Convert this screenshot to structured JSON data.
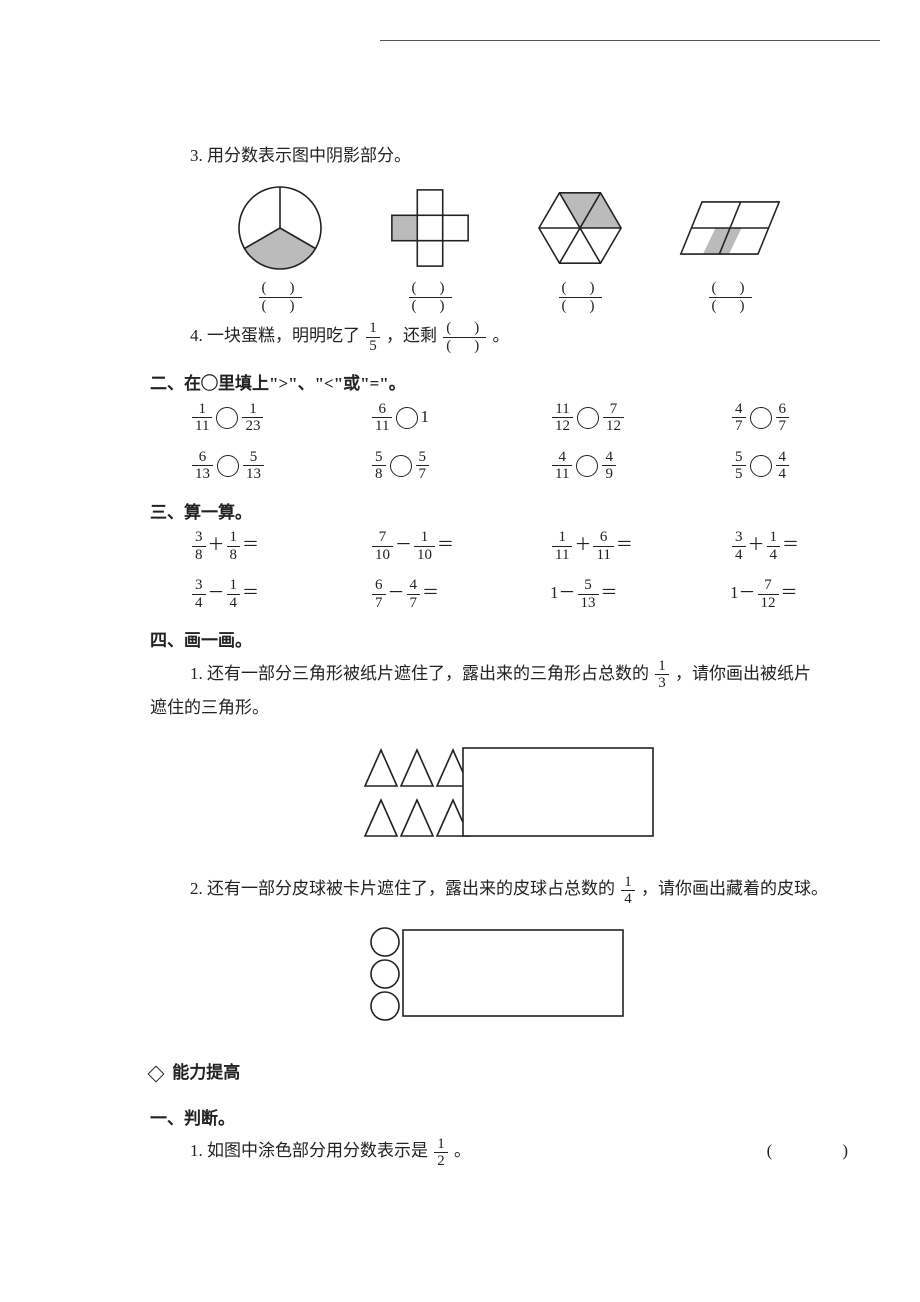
{
  "q3": {
    "prompt": "3. 用分数表示图中阴影部分。",
    "paren_num": "(　)",
    "paren_den": "(　)"
  },
  "q4": {
    "text_a": "4. 一块蛋糕，明明吃了",
    "frac": {
      "n": "1",
      "d": "5"
    },
    "text_b": "，还剩",
    "text_c": "。"
  },
  "s2": {
    "title": "二、在◯里填上\">\"、\"<\"或\"=\"。",
    "items": [
      {
        "l": {
          "n": "1",
          "d": "11"
        },
        "r": {
          "n": "1",
          "d": "23"
        }
      },
      {
        "l": {
          "n": "6",
          "d": "11"
        },
        "rtext": "1"
      },
      {
        "l": {
          "n": "11",
          "d": "12"
        },
        "r": {
          "n": "7",
          "d": "12"
        }
      },
      {
        "l": {
          "n": "4",
          "d": "7"
        },
        "r": {
          "n": "6",
          "d": "7"
        }
      },
      {
        "l": {
          "n": "6",
          "d": "13"
        },
        "r": {
          "n": "5",
          "d": "13"
        }
      },
      {
        "l": {
          "n": "5",
          "d": "8"
        },
        "r": {
          "n": "5",
          "d": "7"
        }
      },
      {
        "l": {
          "n": "4",
          "d": "11"
        },
        "r": {
          "n": "4",
          "d": "9"
        }
      },
      {
        "l": {
          "n": "5",
          "d": "5"
        },
        "r": {
          "n": "4",
          "d": "4"
        }
      }
    ]
  },
  "s3": {
    "title": "三、算一算。",
    "items": [
      {
        "a": {
          "n": "3",
          "d": "8"
        },
        "op": "＋",
        "b": {
          "n": "1",
          "d": "8"
        }
      },
      {
        "a": {
          "n": "7",
          "d": "10"
        },
        "op": "－",
        "b": {
          "n": "1",
          "d": "10"
        }
      },
      {
        "a": {
          "n": "1",
          "d": "11"
        },
        "op": "＋",
        "b": {
          "n": "6",
          "d": "11"
        }
      },
      {
        "a": {
          "n": "3",
          "d": "4"
        },
        "op": "＋",
        "b": {
          "n": "1",
          "d": "4"
        }
      },
      {
        "a": {
          "n": "3",
          "d": "4"
        },
        "op": "－",
        "b": {
          "n": "1",
          "d": "4"
        }
      },
      {
        "a": {
          "n": "6",
          "d": "7"
        },
        "op": "－",
        "b": {
          "n": "4",
          "d": "7"
        }
      },
      {
        "atext": "1",
        "op": "－",
        "b": {
          "n": "5",
          "d": "13"
        }
      },
      {
        "atext": "1",
        "op": "－",
        "b": {
          "n": "7",
          "d": "12"
        }
      }
    ]
  },
  "s4": {
    "title": "四、画一画。",
    "q1a": "1. 还有一部分三角形被纸片遮住了，露出来的三角形占总数的",
    "q1frac": {
      "n": "1",
      "d": "3"
    },
    "q1b": "，请你画出被纸片",
    "q1c": "遮住的三角形。",
    "q2a": "2. 还有一部分皮球被卡片遮住了，露出来的皮球占总数的",
    "q2frac": {
      "n": "1",
      "d": "4"
    },
    "q2b": "，请你画出藏着的皮球。"
  },
  "ability": {
    "title": "能力提高"
  },
  "j1": {
    "title": "一、判断。",
    "text_a": "1. 如图中涂色部分用分数表示是",
    "frac": {
      "n": "1",
      "d": "2"
    },
    "text_b": "。",
    "blank": "(　　)"
  }
}
